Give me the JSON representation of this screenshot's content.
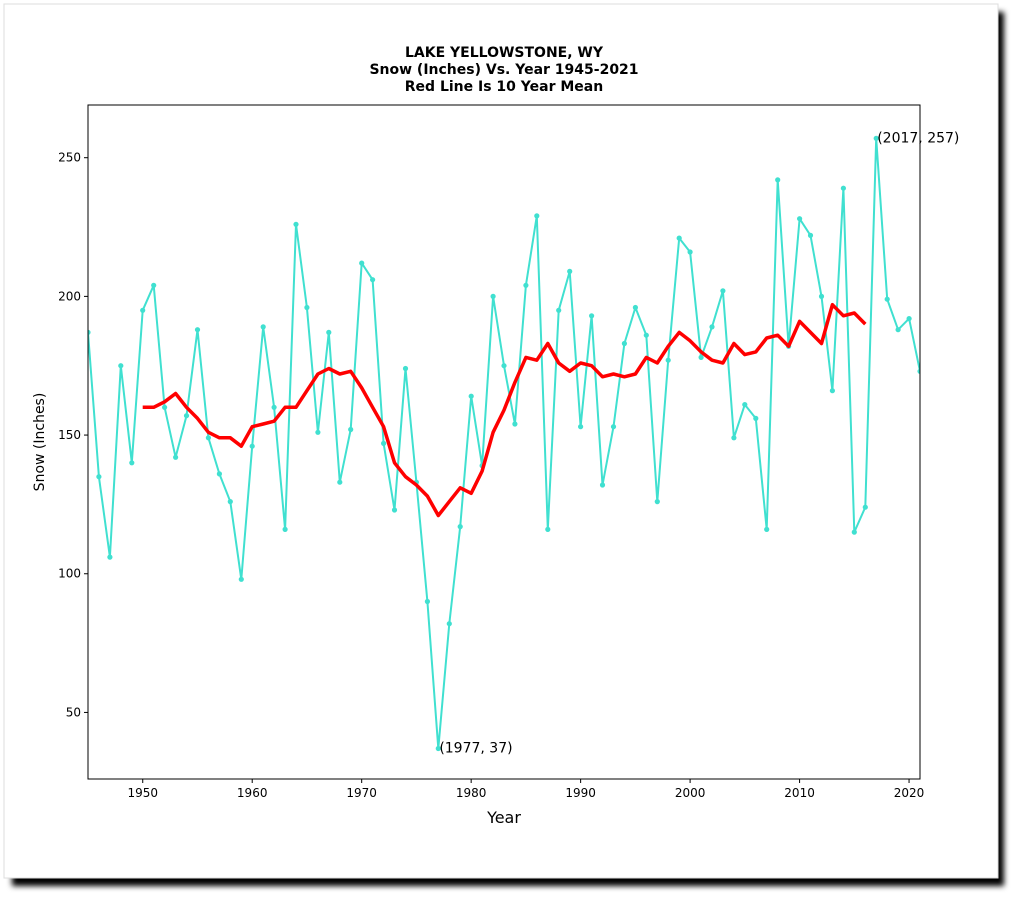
{
  "chart_data": {
    "type": "line",
    "title_lines": [
      "LAKE YELLOWSTONE, WY",
      "Snow (Inches) Vs. Year 1945-2021",
      "Red Line Is 10 Year Mean"
    ],
    "xlabel": "Year",
    "ylabel": "Snow (Inches)",
    "xlim": [
      1945,
      2021
    ],
    "ylim": [
      26,
      269
    ],
    "x_ticks": [
      1950,
      1960,
      1970,
      1980,
      1990,
      2000,
      2010,
      2020
    ],
    "y_ticks": [
      50,
      100,
      150,
      200,
      250
    ],
    "grid": false,
    "series": [
      {
        "color": "#40e0d0",
        "markers": true,
        "x": [
          1945,
          1946,
          1947,
          1948,
          1949,
          1950,
          1951,
          1952,
          1953,
          1954,
          1955,
          1956,
          1957,
          1958,
          1959,
          1960,
          1961,
          1962,
          1963,
          1964,
          1965,
          1966,
          1967,
          1968,
          1969,
          1970,
          1971,
          1972,
          1973,
          1974,
          1975,
          1976,
          1977,
          1978,
          1979,
          1980,
          1981,
          1982,
          1983,
          1984,
          1985,
          1986,
          1987,
          1988,
          1989,
          1990,
          1991,
          1992,
          1993,
          1994,
          1995,
          1996,
          1997,
          1998,
          1999,
          2000,
          2001,
          2002,
          2003,
          2004,
          2005,
          2006,
          2007,
          2008,
          2009,
          2010,
          2011,
          2012,
          2013,
          2014,
          2015,
          2016,
          2017,
          2018,
          2019,
          2020,
          2021
        ],
        "y": [
          187,
          135,
          106,
          175,
          140,
          195,
          204,
          160,
          142,
          157,
          188,
          149,
          136,
          126,
          98,
          146,
          189,
          160,
          116,
          226,
          196,
          151,
          187,
          133,
          152,
          212,
          206,
          147,
          123,
          174,
          133,
          90,
          37,
          82,
          117,
          164,
          139,
          200,
          175,
          154,
          204,
          229,
          116,
          195,
          209,
          153,
          193,
          132,
          153,
          183,
          196,
          186,
          126,
          177,
          221,
          216,
          178,
          189,
          202,
          149,
          161,
          156,
          116,
          242,
          182,
          228,
          222,
          200,
          166,
          239,
          115,
          124,
          257,
          199,
          188,
          192,
          173
        ]
      },
      {
        "color": "#ff0000",
        "markers": false,
        "x": [
          1950,
          1951,
          1952,
          1953,
          1954,
          1955,
          1956,
          1957,
          1958,
          1959,
          1960,
          1961,
          1962,
          1963,
          1964,
          1965,
          1966,
          1967,
          1968,
          1969,
          1970,
          1971,
          1972,
          1973,
          1974,
          1975,
          1976,
          1977,
          1978,
          1979,
          1980,
          1981,
          1982,
          1983,
          1984,
          1985,
          1986,
          1987,
          1988,
          1989,
          1990,
          1991,
          1992,
          1993,
          1994,
          1995,
          1996,
          1997,
          1998,
          1999,
          2000,
          2001,
          2002,
          2003,
          2004,
          2005,
          2006,
          2007,
          2008,
          2009,
          2010,
          2011,
          2012,
          2013,
          2014,
          2015,
          2016
        ],
        "y": [
          160,
          160,
          162,
          165,
          160,
          156,
          151,
          149,
          149,
          146,
          153,
          154,
          155,
          160,
          160,
          166,
          172,
          174,
          172,
          173,
          167,
          160,
          153,
          140,
          135,
          132,
          128,
          121,
          126,
          131,
          129,
          137,
          151,
          159,
          169,
          178,
          177,
          183,
          176,
          173,
          176,
          175,
          171,
          172,
          171,
          172,
          178,
          176,
          182,
          187,
          184,
          180,
          177,
          176,
          183,
          179,
          180,
          185,
          186,
          182,
          191,
          187,
          183,
          197,
          193,
          194,
          190
        ]
      }
    ],
    "annotations": [
      {
        "text": "(2017, 257)",
        "x": 2017,
        "y": 257
      },
      {
        "text": "(1977, 37)",
        "x": 1977,
        "y": 37
      }
    ]
  }
}
